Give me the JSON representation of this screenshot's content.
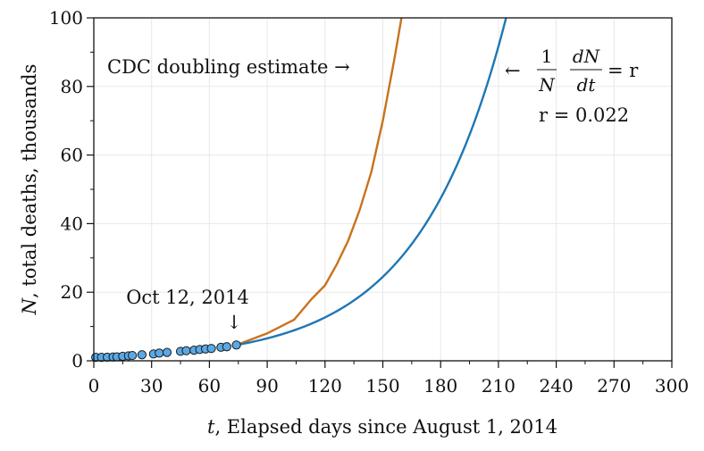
{
  "chart_data": {
    "type": "line",
    "title": "",
    "xlabel_var": "t",
    "xlabel_rest": ", Elapsed days since August 1, 2014",
    "ylabel_var": "N",
    "ylabel_rest": ", total deaths, thousands",
    "xlim": [
      0,
      300
    ],
    "ylim": [
      0,
      100
    ],
    "x_ticks": [
      "0",
      "30",
      "60",
      "90",
      "120",
      "150",
      "180",
      "210",
      "240",
      "270",
      "300"
    ],
    "y_ticks": [
      "0",
      "20",
      "40",
      "60",
      "80",
      "100"
    ],
    "grid": true,
    "colors": {
      "observed": "#5aa9e6",
      "cdc": "#c8731c",
      "fit": "#1f77b4",
      "grid": "#e8e8e8"
    },
    "series": [
      {
        "key": "observed",
        "style": "markers",
        "x": [
          1,
          4,
          7,
          10,
          12,
          15,
          18,
          20,
          25,
          31,
          34,
          38,
          45,
          48,
          52,
          55,
          58,
          61,
          66,
          69,
          74
        ],
        "y": [
          1.0,
          1.0,
          1.05,
          1.1,
          1.15,
          1.3,
          1.45,
          1.55,
          1.75,
          2.0,
          2.25,
          2.45,
          2.75,
          2.95,
          3.1,
          3.3,
          3.45,
          3.6,
          3.95,
          4.1,
          4.6
        ]
      },
      {
        "key": "cdc",
        "style": "line",
        "x": [
          74,
          90,
          104,
          113,
          120,
          126,
          132,
          138,
          144,
          150,
          156,
          160
        ],
        "y": [
          4.6,
          8.0,
          12.0,
          18.0,
          22.0,
          28.0,
          35.0,
          44.0,
          55.0,
          70.0,
          88.0,
          101.0
        ]
      },
      {
        "key": "fit",
        "style": "line",
        "equation": {
          "x0": 74,
          "y0": 4.6,
          "r": 0.022,
          "x_end": 216
        }
      }
    ],
    "annotations": {
      "cdc_label": "CDC doubling estimate →",
      "arrow_left": "←",
      "frac1_num": "1",
      "frac1_den": "N",
      "frac2_num": "dN",
      "frac2_den": "dt",
      "eq_tail": "= r",
      "r_value": "r = 0.022",
      "date_label": "Oct 12, 2014",
      "date_arrow": "↓"
    }
  }
}
